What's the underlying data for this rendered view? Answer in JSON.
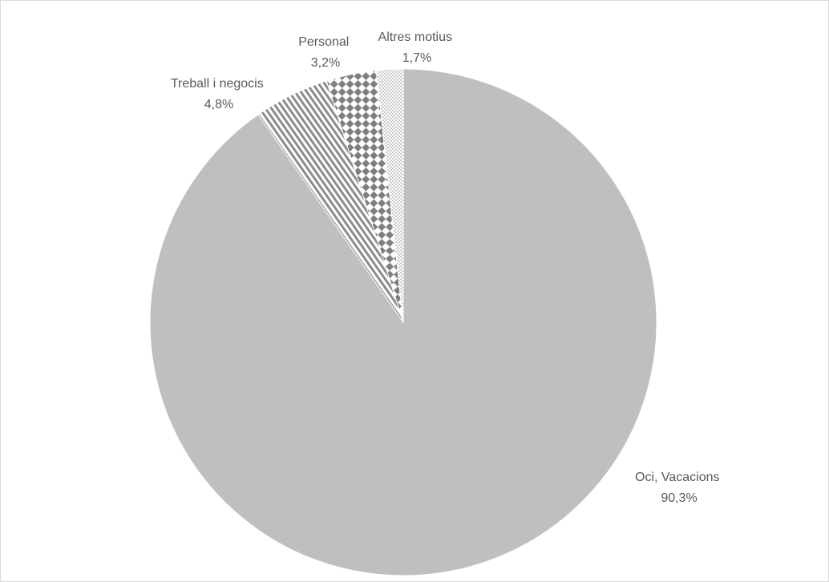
{
  "chart_data": {
    "type": "pie",
    "title": "",
    "legend": "none",
    "slices": [
      {
        "label": "Oci, Vacacions",
        "value": 90.3,
        "value_text": "90,3%",
        "pattern": "solid",
        "color": "#bfbfbf"
      },
      {
        "label": "Treball i negocis",
        "value": 4.8,
        "value_text": "4,8%",
        "pattern": "diagonal-stripes",
        "color": "#8c8c8c"
      },
      {
        "label": "Personal",
        "value": 3.2,
        "value_text": "3,2%",
        "pattern": "diamond-checker",
        "color": "#7f7f7f"
      },
      {
        "label": "Altres motius",
        "value": 1.7,
        "value_text": "1,7%",
        "pattern": "dots",
        "color": "#a6a6a6"
      }
    ],
    "start_angle_deg": 0,
    "direction": "clockwise"
  },
  "colors": {
    "label_text": "#595959",
    "border": "#d9d9d9",
    "background": "#ffffff",
    "slice_edge": "#ffffff"
  }
}
